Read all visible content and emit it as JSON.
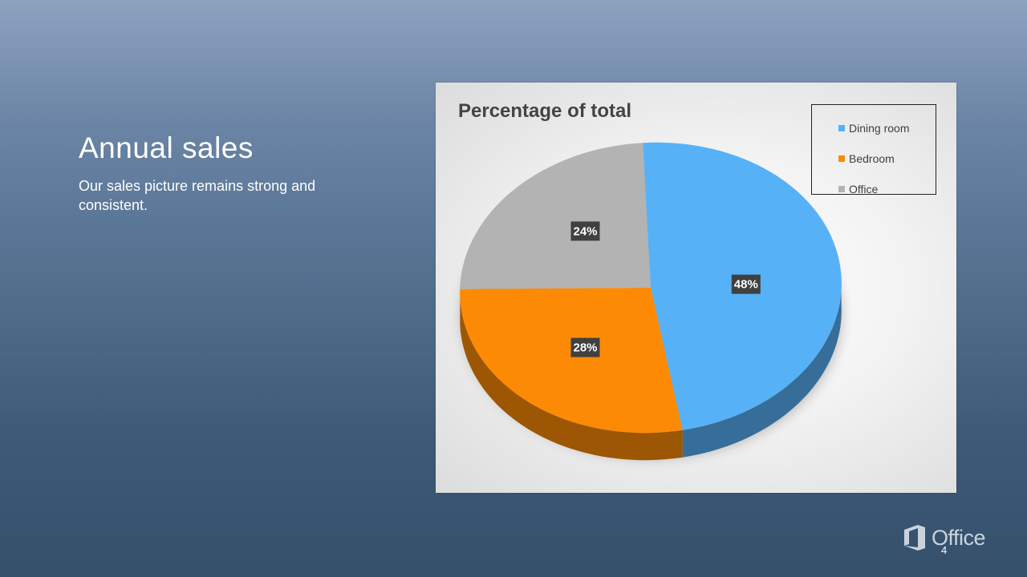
{
  "slide": {
    "title": "Annual sales",
    "subtitle": "Our sales picture remains strong and consistent.",
    "page_number": "4"
  },
  "branding": {
    "logo_text": "Office",
    "logo_icon": "office-logo-icon"
  },
  "colors": {
    "dining_room": "#57b1f7",
    "bedroom": "#fd8a05",
    "office": "#b3b3b3"
  },
  "chart_data": {
    "type": "pie",
    "style": "3d",
    "title": "Percentage of total",
    "legend_position": "top-right",
    "categories": [
      "Dining room",
      "Bedroom",
      "Office"
    ],
    "values": [
      48,
      28,
      24
    ],
    "data_labels": [
      "48%",
      "28%",
      "24%"
    ],
    "colors": [
      "#57b1f7",
      "#fd8a05",
      "#b3b3b3"
    ]
  }
}
